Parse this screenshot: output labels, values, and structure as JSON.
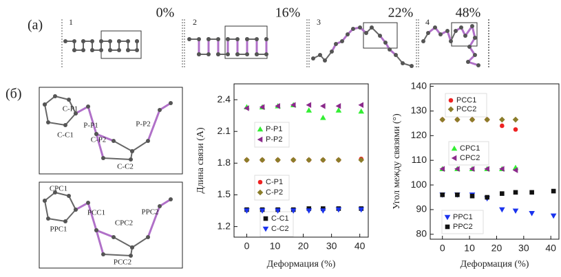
{
  "panel_a": {
    "label": "(a)",
    "frames": [
      {
        "number": "1",
        "strain": "0%"
      },
      {
        "number": "2",
        "strain": "16%"
      },
      {
        "number": "3",
        "strain": "22%"
      },
      {
        "number": "4",
        "strain": "48%"
      }
    ]
  },
  "panel_b": {
    "label": "(б)",
    "bond_labels": [
      "C-P1",
      "P-P1",
      "P-P2",
      "C-C1",
      "C-P2",
      "C-C2"
    ],
    "angle_labels": [
      "CPC1",
      "PPC1",
      "CPC2",
      "PPC2",
      "PCC1",
      "PCC2"
    ]
  },
  "chart_data": [
    {
      "type": "scatter",
      "x_label": "Деформация (%)",
      "y_label": "Длина связи (A)",
      "x": [
        0,
        5.5,
        11,
        16.5,
        22,
        27,
        32.5,
        40.5
      ],
      "xlim": [
        -4.5,
        43
      ],
      "xticks": [
        0,
        10,
        20,
        30,
        40
      ],
      "ylim": [
        1.1,
        2.55
      ],
      "yticks": [
        1.2,
        1.5,
        1.8,
        2.1,
        2.4
      ],
      "series": [
        {
          "name": "P-P1",
          "color": "#33ee33",
          "marker": "triangle-up",
          "values": [
            2.33,
            2.33,
            2.34,
            2.35,
            2.3,
            2.23,
            2.3,
            2.29
          ]
        },
        {
          "name": "P-P2",
          "color": "#8b2a8b",
          "marker": "triangle-left",
          "values": [
            2.32,
            2.33,
            2.34,
            2.35,
            2.35,
            2.34,
            2.34,
            2.35
          ]
        },
        {
          "name": "C-P1",
          "color": "#ee2222",
          "marker": "circle",
          "values": [
            1.83,
            1.83,
            1.83,
            1.83,
            1.83,
            1.83,
            1.83,
            1.84
          ]
        },
        {
          "name": "C-P2",
          "color": "#8b7d2a",
          "marker": "diamond",
          "values": [
            1.83,
            1.83,
            1.83,
            1.83,
            1.83,
            1.83,
            1.83,
            1.83
          ]
        },
        {
          "name": "C-C1",
          "color": "#111111",
          "marker": "square",
          "values": [
            1.36,
            1.36,
            1.36,
            1.36,
            1.37,
            1.37,
            1.37,
            1.37
          ]
        },
        {
          "name": "C-C2",
          "color": "#1a33ee",
          "marker": "triangle-down",
          "values": [
            1.35,
            1.35,
            1.35,
            1.35,
            1.35,
            1.35,
            1.36,
            1.36
          ]
        }
      ]
    },
    {
      "type": "scatter",
      "x_label": "Деформация (%)",
      "y_label": "Угол между связями (°)",
      "x": [
        0,
        5.5,
        11,
        16.5,
        22,
        27,
        33,
        41
      ],
      "xlim": [
        -4.5,
        43
      ],
      "xticks": [
        0,
        10,
        20,
        30,
        40
      ],
      "ylim": [
        78,
        141
      ],
      "yticks": [
        80,
        90,
        100,
        110,
        120,
        130,
        140
      ],
      "series": [
        {
          "name": "PCC1",
          "color": "#ee2222",
          "marker": "circle",
          "values": [
            126.5,
            126.5,
            126.5,
            126.5,
            124,
            122.5,
            null,
            null
          ]
        },
        {
          "name": "PCC2",
          "color": "#8b7d2a",
          "marker": "diamond",
          "values": [
            126.5,
            126.5,
            126.5,
            126.5,
            126.5,
            126.5,
            null,
            null
          ]
        },
        {
          "name": "CPC1",
          "color": "#33ee33",
          "marker": "triangle-up",
          "values": [
            106.5,
            106.5,
            106.5,
            106.5,
            106.5,
            107,
            null,
            null
          ]
        },
        {
          "name": "CPC2",
          "color": "#8b2a8b",
          "marker": "triangle-left",
          "values": [
            106.5,
            106.5,
            106.5,
            106.5,
            106.5,
            106,
            null,
            null
          ]
        },
        {
          "name": "PPC1",
          "color": "#1a33ee",
          "marker": "triangle-down",
          "values": [
            96,
            96,
            96,
            94.5,
            90,
            89.5,
            88.5,
            87.5
          ]
        },
        {
          "name": "PPC2",
          "color": "#111111",
          "marker": "square",
          "values": [
            96,
            96,
            95.5,
            95,
            96.5,
            97,
            97,
            97.5
          ]
        }
      ]
    }
  ]
}
